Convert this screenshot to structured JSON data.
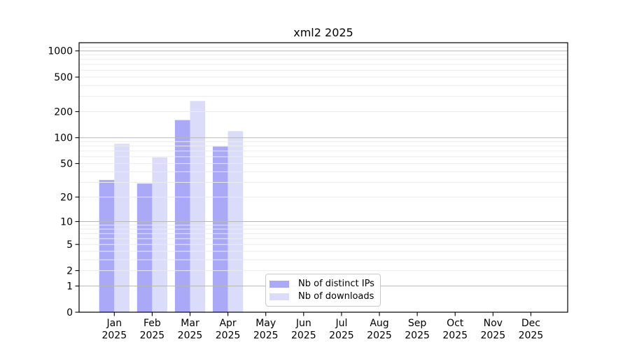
{
  "chart_data": {
    "type": "bar",
    "title": "xml2 2025",
    "categories": [
      "Jan",
      "Feb",
      "Mar",
      "Apr",
      "May",
      "Jun",
      "Jul",
      "Aug",
      "Sep",
      "Oct",
      "Nov",
      "Dec"
    ],
    "x_tick_year": "2025",
    "series": [
      {
        "name": "Nb of distinct IPs",
        "color": "#a9a9f8",
        "values": [
          32,
          29,
          160,
          79,
          0,
          0,
          0,
          0,
          0,
          0,
          0,
          0
        ]
      },
      {
        "name": "Nb of downloads",
        "color": "#dbdbfa",
        "values": [
          85,
          59,
          265,
          119,
          0,
          0,
          0,
          0,
          0,
          0,
          0,
          0
        ]
      }
    ],
    "y_ticks": [
      0,
      1,
      2,
      5,
      10,
      20,
      50,
      100,
      200,
      500,
      1000
    ],
    "y_minor_gridlines": [
      2,
      3,
      4,
      5,
      6,
      7,
      8,
      9,
      20,
      30,
      40,
      50,
      60,
      70,
      80,
      90,
      200,
      300,
      400,
      500,
      600,
      700,
      800,
      900,
      1100
    ],
    "y_major_gridlines": [
      1,
      10,
      100,
      1000
    ],
    "scale": "log10(1+x)",
    "ylim": [
      0,
      1230
    ],
    "grid": "on",
    "legend_position": "lower center",
    "colors": {
      "axis": "#000000",
      "major_grid": "#b8b8b8",
      "minor_grid": "#ececec",
      "background": "#ffffff"
    }
  }
}
